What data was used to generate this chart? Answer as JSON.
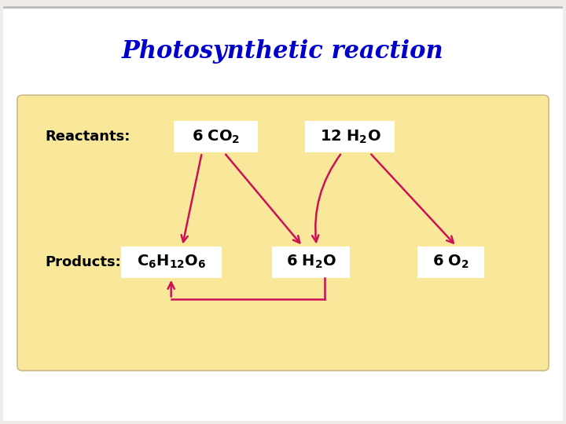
{
  "title": "Photosynthetic reaction",
  "title_color": "#0000CC",
  "title_fontsize": 22,
  "title_fontweight": "bold",
  "background_color": "#F0EDE8",
  "box_bg_color": "#FAE89A",
  "arrow_color": "#CC1155",
  "reactants_label": "Reactants:",
  "products_label": "Products:",
  "r1x": 3.8,
  "r1y": 6.8,
  "r2x": 6.2,
  "r2y": 6.8,
  "p1x": 3.0,
  "p1y": 3.8,
  "p2x": 5.5,
  "p2y": 3.8,
  "p3x": 8.0,
  "p3y": 3.8
}
